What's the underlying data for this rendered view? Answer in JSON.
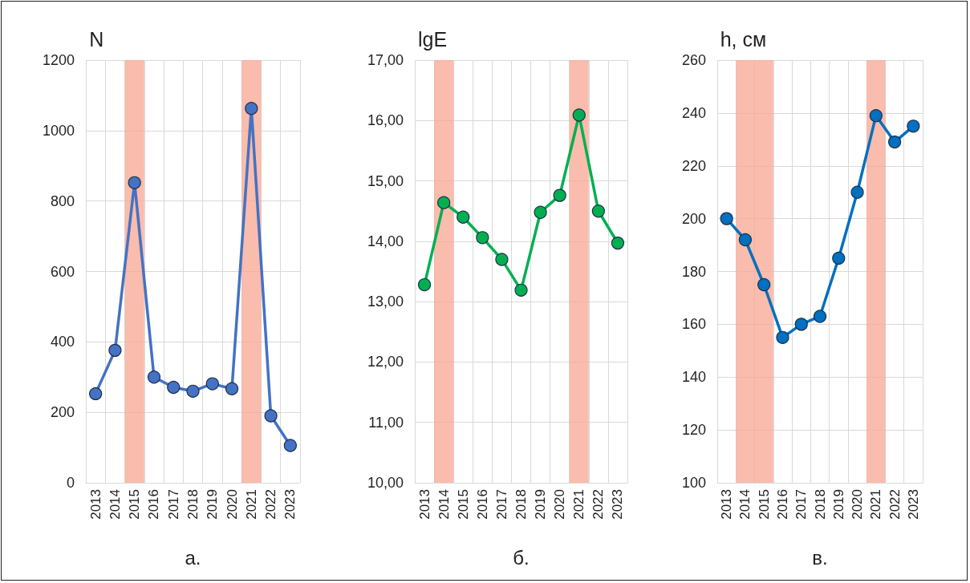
{
  "chart_data": [
    {
      "type": "line",
      "ylabel": "N",
      "categories": [
        "2013",
        "2014",
        "2015",
        "2016",
        "2017",
        "2018",
        "2019",
        "2020",
        "2021",
        "2022",
        "2023"
      ],
      "series": [
        {
          "color": "#4472c4",
          "values": [
            253,
            376,
            852,
            300,
            271,
            260,
            281,
            267,
            1063,
            190,
            106
          ]
        }
      ],
      "ylim": [
        0,
        1200
      ],
      "yticks": [
        0,
        200,
        400,
        600,
        800,
        1000,
        1200
      ],
      "grid": true,
      "marker": "circle",
      "line_style": "solid",
      "bands": [
        {
          "axis": "x",
          "from": "2015",
          "to": "2015",
          "color": "#f8a590"
        },
        {
          "axis": "x",
          "from": "2021",
          "to": "2021",
          "color": "#f8a590"
        }
      ],
      "annotations": [
        "а."
      ]
    },
    {
      "type": "line",
      "ylabel": "lgE",
      "categories": [
        "2013",
        "2014",
        "2015",
        "2016",
        "2017",
        "2018",
        "2019",
        "2020",
        "2021",
        "2022",
        "2023"
      ],
      "series": [
        {
          "color": "#00b050",
          "values": [
            13.28,
            14.64,
            14.4,
            14.06,
            13.7,
            13.19,
            14.48,
            14.76,
            16.09,
            14.5,
            13.97
          ]
        }
      ],
      "ylim": [
        10,
        17
      ],
      "yticks": [
        {
          "value": 10,
          "label": "10,00"
        },
        {
          "value": 11,
          "label": "11,00"
        },
        {
          "value": 12,
          "label": "12,00"
        },
        {
          "value": 13,
          "label": "13,00"
        },
        {
          "value": 14,
          "label": "14,00"
        },
        {
          "value": 15,
          "label": "15,00"
        },
        {
          "value": 16,
          "label": "16,00"
        },
        {
          "value": 17,
          "label": "17,00"
        }
      ],
      "grid": true,
      "marker": "circle",
      "line_style": "solid",
      "bands": [
        {
          "axis": "x",
          "from": "2014",
          "to": "2014",
          "color": "#f8a590"
        },
        {
          "axis": "x",
          "from": "2021",
          "to": "2021",
          "color": "#f8a590"
        }
      ],
      "annotations": [
        "б."
      ]
    },
    {
      "type": "line",
      "ylabel": "h, см",
      "categories": [
        "2013",
        "2014",
        "2015",
        "2016",
        "2017",
        "2018",
        "2019",
        "2020",
        "2021",
        "2022",
        "2023"
      ],
      "series": [
        {
          "color": "#0070c0",
          "values": [
            200,
            192,
            175,
            155,
            160,
            163,
            185,
            210,
            239,
            229,
            235
          ]
        }
      ],
      "ylim": [
        100,
        260
      ],
      "yticks": [
        100,
        120,
        140,
        160,
        180,
        200,
        220,
        240,
        260
      ],
      "grid": true,
      "marker": "circle",
      "line_style": "solid",
      "bands": [
        {
          "axis": "x",
          "from": "2014",
          "to": "2015",
          "color": "#f8a590"
        },
        {
          "axis": "x",
          "from": "2021",
          "to": "2021",
          "color": "#f8a590"
        }
      ],
      "annotations": [
        "в."
      ]
    }
  ]
}
